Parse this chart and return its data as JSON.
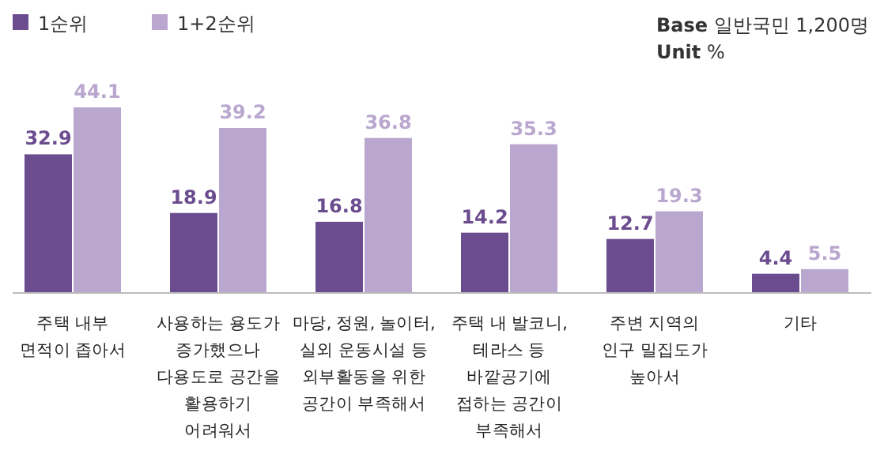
{
  "chart_data": {
    "type": "bar",
    "categories": [
      "주택 내부\n면적이 좁아서",
      "사용하는 용도가\n증가했으나\n다용도로 공간을\n활용하기\n어려워서",
      "마당, 정원, 놀이터,\n실외 운동시설 등\n외부활동을 위한\n공간이 부족해서",
      "주택 내 발코니,\n테라스 등\n바깥공기에\n접하는 공간이\n부족해서",
      "주변 지역의\n인구 밀집도가\n높아서",
      "기타"
    ],
    "series": [
      {
        "name": "1순위",
        "color": "#6b4c8e",
        "values": [
          32.9,
          18.9,
          16.8,
          14.2,
          12.7,
          4.4
        ]
      },
      {
        "name": "1+2순위",
        "color": "#b9a7cf",
        "values": [
          44.1,
          39.2,
          36.8,
          35.3,
          19.3,
          5.5
        ]
      }
    ],
    "data_labels": true,
    "legend": "top left",
    "annotations": [
      "**Base**  일반국민 1,200명",
      "**Unit**  %"
    ]
  }
}
